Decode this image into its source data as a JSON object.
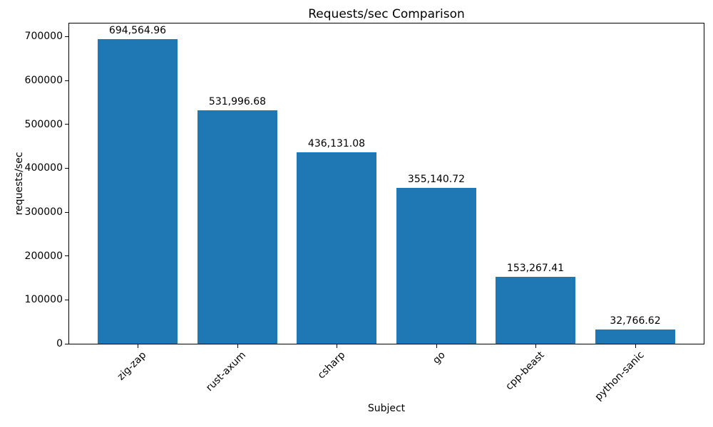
{
  "chart_data": {
    "type": "bar",
    "title": "Requests/sec Comparison",
    "xlabel": "Subject",
    "ylabel": "requests/sec",
    "categories": [
      "zig-zap",
      "rust-axum",
      "csharp",
      "go",
      "cpp-beast",
      "python-sanic"
    ],
    "values": [
      694564.96,
      531996.68,
      436131.08,
      355140.72,
      153267.41,
      32766.62
    ],
    "value_labels": [
      "694,564.96",
      "531,996.68",
      "436,131.08",
      "355,140.72",
      "153,267.41",
      "32,766.62"
    ],
    "yticks": [
      0,
      100000,
      200000,
      300000,
      400000,
      500000,
      600000,
      700000
    ],
    "ytick_labels": [
      "0",
      "100000",
      "200000",
      "300000",
      "400000",
      "500000",
      "600000",
      "700000"
    ],
    "ylim": [
      0,
      730000
    ],
    "bar_color": "#1f77b4",
    "grid": false,
    "legend": false
  }
}
